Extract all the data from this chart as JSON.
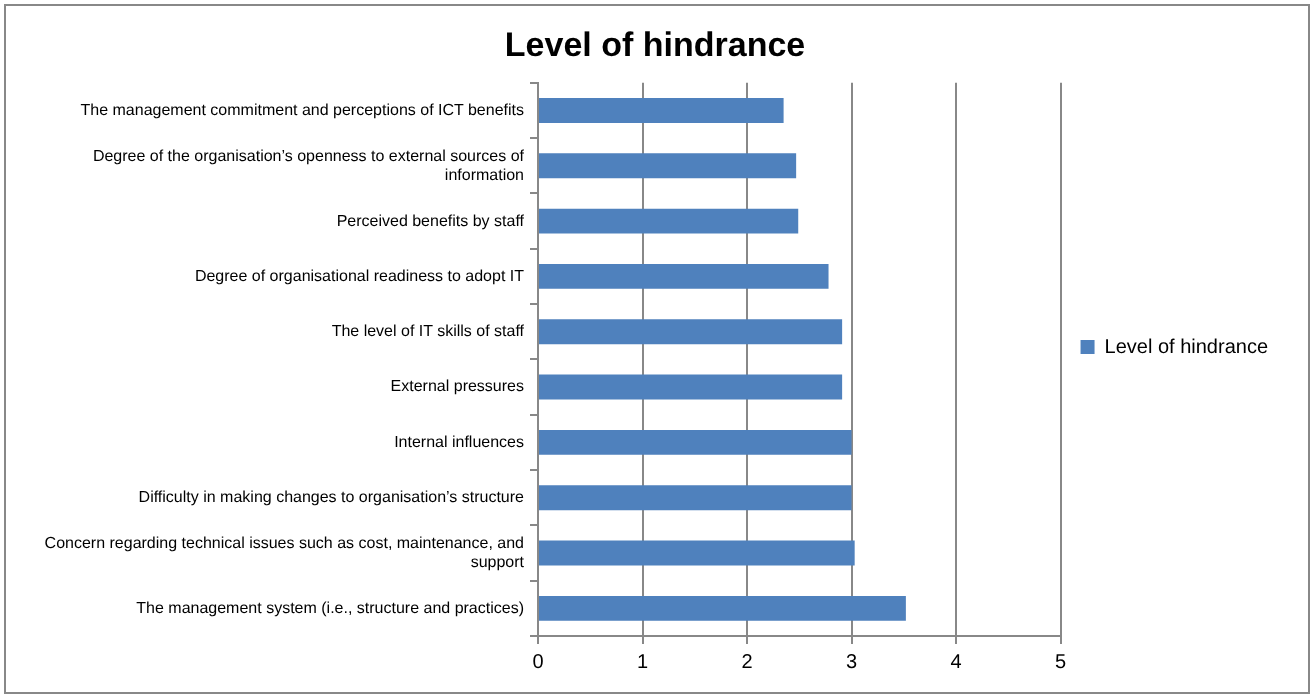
{
  "chart_data": {
    "type": "bar",
    "orientation": "horizontal",
    "title": "Level of hindrance",
    "categories": [
      "The management commitment and perceptions of ICT benefits",
      "Degree of the organisation’s openness to external sources of information",
      "Perceived benefits by staff",
      "Degree of organisational readiness to adopt IT",
      "The level of IT skills of staff",
      "External pressures",
      "Internal influences",
      "Difficulty in making changes to organisation’s structure",
      "Concern regarding technical issues such as cost, maintenance, and support",
      "The management system (i.e., structure and practices)"
    ],
    "series": [
      {
        "name": "Level of hindrance",
        "color": "#4f81bd",
        "values": [
          2.35,
          2.47,
          2.49,
          2.78,
          2.91,
          2.91,
          3.0,
          3.0,
          3.03,
          3.52
        ]
      }
    ],
    "xlim": [
      0,
      5
    ],
    "xticks": [
      0,
      1,
      2,
      3,
      4,
      5
    ],
    "grid": "x",
    "legend": "right"
  }
}
